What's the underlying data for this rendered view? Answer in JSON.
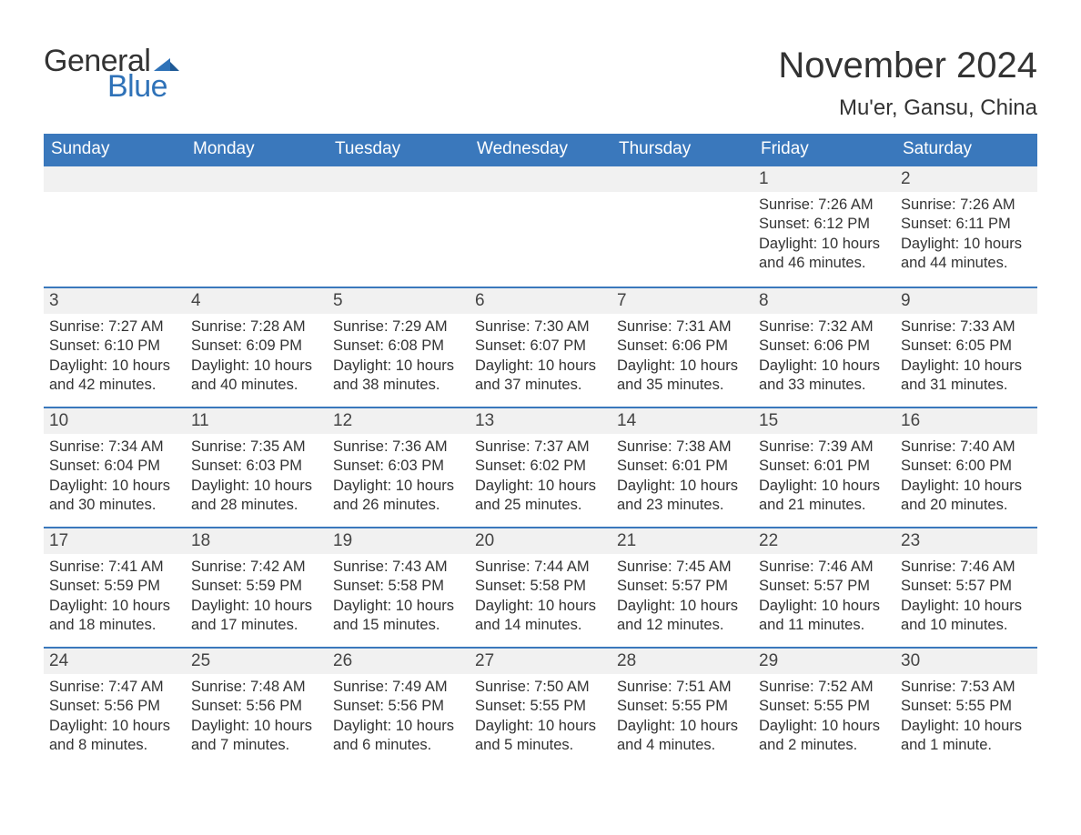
{
  "branding": {
    "logo_general": "General",
    "logo_blue": "Blue",
    "tri_color": "#2f72b8"
  },
  "header": {
    "month_title": "November 2024",
    "location": "Mu'er, Gansu, China"
  },
  "colors": {
    "header_bg": "#3a78bc",
    "header_text": "#ffffff",
    "daynum_bg": "#f1f1f1",
    "body_text": "#333333",
    "border": "#3a78bc"
  },
  "weekdays": [
    "Sunday",
    "Monday",
    "Tuesday",
    "Wednesday",
    "Thursday",
    "Friday",
    "Saturday"
  ],
  "weeks": [
    [
      null,
      null,
      null,
      null,
      null,
      {
        "n": "1",
        "sunrise": "Sunrise: 7:26 AM",
        "sunset": "Sunset: 6:12 PM",
        "daylight": "Daylight: 10 hours and 46 minutes."
      },
      {
        "n": "2",
        "sunrise": "Sunrise: 7:26 AM",
        "sunset": "Sunset: 6:11 PM",
        "daylight": "Daylight: 10 hours and 44 minutes."
      }
    ],
    [
      {
        "n": "3",
        "sunrise": "Sunrise: 7:27 AM",
        "sunset": "Sunset: 6:10 PM",
        "daylight": "Daylight: 10 hours and 42 minutes."
      },
      {
        "n": "4",
        "sunrise": "Sunrise: 7:28 AM",
        "sunset": "Sunset: 6:09 PM",
        "daylight": "Daylight: 10 hours and 40 minutes."
      },
      {
        "n": "5",
        "sunrise": "Sunrise: 7:29 AM",
        "sunset": "Sunset: 6:08 PM",
        "daylight": "Daylight: 10 hours and 38 minutes."
      },
      {
        "n": "6",
        "sunrise": "Sunrise: 7:30 AM",
        "sunset": "Sunset: 6:07 PM",
        "daylight": "Daylight: 10 hours and 37 minutes."
      },
      {
        "n": "7",
        "sunrise": "Sunrise: 7:31 AM",
        "sunset": "Sunset: 6:06 PM",
        "daylight": "Daylight: 10 hours and 35 minutes."
      },
      {
        "n": "8",
        "sunrise": "Sunrise: 7:32 AM",
        "sunset": "Sunset: 6:06 PM",
        "daylight": "Daylight: 10 hours and 33 minutes."
      },
      {
        "n": "9",
        "sunrise": "Sunrise: 7:33 AM",
        "sunset": "Sunset: 6:05 PM",
        "daylight": "Daylight: 10 hours and 31 minutes."
      }
    ],
    [
      {
        "n": "10",
        "sunrise": "Sunrise: 7:34 AM",
        "sunset": "Sunset: 6:04 PM",
        "daylight": "Daylight: 10 hours and 30 minutes."
      },
      {
        "n": "11",
        "sunrise": "Sunrise: 7:35 AM",
        "sunset": "Sunset: 6:03 PM",
        "daylight": "Daylight: 10 hours and 28 minutes."
      },
      {
        "n": "12",
        "sunrise": "Sunrise: 7:36 AM",
        "sunset": "Sunset: 6:03 PM",
        "daylight": "Daylight: 10 hours and 26 minutes."
      },
      {
        "n": "13",
        "sunrise": "Sunrise: 7:37 AM",
        "sunset": "Sunset: 6:02 PM",
        "daylight": "Daylight: 10 hours and 25 minutes."
      },
      {
        "n": "14",
        "sunrise": "Sunrise: 7:38 AM",
        "sunset": "Sunset: 6:01 PM",
        "daylight": "Daylight: 10 hours and 23 minutes."
      },
      {
        "n": "15",
        "sunrise": "Sunrise: 7:39 AM",
        "sunset": "Sunset: 6:01 PM",
        "daylight": "Daylight: 10 hours and 21 minutes."
      },
      {
        "n": "16",
        "sunrise": "Sunrise: 7:40 AM",
        "sunset": "Sunset: 6:00 PM",
        "daylight": "Daylight: 10 hours and 20 minutes."
      }
    ],
    [
      {
        "n": "17",
        "sunrise": "Sunrise: 7:41 AM",
        "sunset": "Sunset: 5:59 PM",
        "daylight": "Daylight: 10 hours and 18 minutes."
      },
      {
        "n": "18",
        "sunrise": "Sunrise: 7:42 AM",
        "sunset": "Sunset: 5:59 PM",
        "daylight": "Daylight: 10 hours and 17 minutes."
      },
      {
        "n": "19",
        "sunrise": "Sunrise: 7:43 AM",
        "sunset": "Sunset: 5:58 PM",
        "daylight": "Daylight: 10 hours and 15 minutes."
      },
      {
        "n": "20",
        "sunrise": "Sunrise: 7:44 AM",
        "sunset": "Sunset: 5:58 PM",
        "daylight": "Daylight: 10 hours and 14 minutes."
      },
      {
        "n": "21",
        "sunrise": "Sunrise: 7:45 AM",
        "sunset": "Sunset: 5:57 PM",
        "daylight": "Daylight: 10 hours and 12 minutes."
      },
      {
        "n": "22",
        "sunrise": "Sunrise: 7:46 AM",
        "sunset": "Sunset: 5:57 PM",
        "daylight": "Daylight: 10 hours and 11 minutes."
      },
      {
        "n": "23",
        "sunrise": "Sunrise: 7:46 AM",
        "sunset": "Sunset: 5:57 PM",
        "daylight": "Daylight: 10 hours and 10 minutes."
      }
    ],
    [
      {
        "n": "24",
        "sunrise": "Sunrise: 7:47 AM",
        "sunset": "Sunset: 5:56 PM",
        "daylight": "Daylight: 10 hours and 8 minutes."
      },
      {
        "n": "25",
        "sunrise": "Sunrise: 7:48 AM",
        "sunset": "Sunset: 5:56 PM",
        "daylight": "Daylight: 10 hours and 7 minutes."
      },
      {
        "n": "26",
        "sunrise": "Sunrise: 7:49 AM",
        "sunset": "Sunset: 5:56 PM",
        "daylight": "Daylight: 10 hours and 6 minutes."
      },
      {
        "n": "27",
        "sunrise": "Sunrise: 7:50 AM",
        "sunset": "Sunset: 5:55 PM",
        "daylight": "Daylight: 10 hours and 5 minutes."
      },
      {
        "n": "28",
        "sunrise": "Sunrise: 7:51 AM",
        "sunset": "Sunset: 5:55 PM",
        "daylight": "Daylight: 10 hours and 4 minutes."
      },
      {
        "n": "29",
        "sunrise": "Sunrise: 7:52 AM",
        "sunset": "Sunset: 5:55 PM",
        "daylight": "Daylight: 10 hours and 2 minutes."
      },
      {
        "n": "30",
        "sunrise": "Sunrise: 7:53 AM",
        "sunset": "Sunset: 5:55 PM",
        "daylight": "Daylight: 10 hours and 1 minute."
      }
    ]
  ]
}
